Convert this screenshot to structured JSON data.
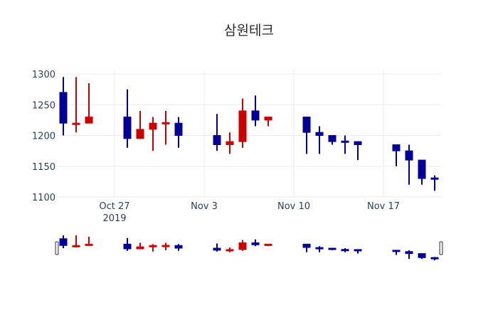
{
  "chart_data": {
    "type": "candlestick",
    "title": "삼원테크",
    "xlabel": "",
    "ylabel": "",
    "ylim": [
      1100,
      1300
    ],
    "y_ticks": [
      1100,
      1150,
      1200,
      1250,
      1300
    ],
    "x_ticks": [
      {
        "date": "2019-10-27",
        "label": "Oct 27",
        "sublabel": "2019"
      },
      {
        "date": "2019-11-03",
        "label": "Nov 3"
      },
      {
        "date": "2019-11-10",
        "label": "Nov 10"
      },
      {
        "date": "2019-11-17",
        "label": "Nov 17"
      }
    ],
    "grid": true,
    "rangeslider": true,
    "increasing_color": "#cc0000",
    "decreasing_color": "#000099",
    "candles": [
      {
        "date": "2019-10-23",
        "open": 1270,
        "high": 1295,
        "low": 1200,
        "close": 1220
      },
      {
        "date": "2019-10-24",
        "open": 1220,
        "high": 1295,
        "low": 1205,
        "close": 1220
      },
      {
        "date": "2019-10-25",
        "open": 1220,
        "high": 1285,
        "low": 1220,
        "close": 1230
      },
      {
        "date": "2019-10-28",
        "open": 1230,
        "high": 1275,
        "low": 1180,
        "close": 1195
      },
      {
        "date": "2019-10-29",
        "open": 1195,
        "high": 1240,
        "low": 1195,
        "close": 1210
      },
      {
        "date": "2019-10-30",
        "open": 1210,
        "high": 1230,
        "low": 1175,
        "close": 1220
      },
      {
        "date": "2019-10-31",
        "open": 1219,
        "high": 1240,
        "low": 1185,
        "close": 1221
      },
      {
        "date": "2019-11-01",
        "open": 1220,
        "high": 1230,
        "low": 1180,
        "close": 1200
      },
      {
        "date": "2019-11-04",
        "open": 1200,
        "high": 1235,
        "low": 1175,
        "close": 1185
      },
      {
        "date": "2019-11-05",
        "open": 1185,
        "high": 1205,
        "low": 1170,
        "close": 1190
      },
      {
        "date": "2019-11-06",
        "open": 1190,
        "high": 1260,
        "low": 1180,
        "close": 1240
      },
      {
        "date": "2019-11-07",
        "open": 1240,
        "high": 1265,
        "low": 1215,
        "close": 1225
      },
      {
        "date": "2019-11-08",
        "open": 1225,
        "high": 1230,
        "low": 1215,
        "close": 1230
      },
      {
        "date": "2019-11-11",
        "open": 1230,
        "high": 1230,
        "low": 1170,
        "close": 1205
      },
      {
        "date": "2019-11-12",
        "open": 1205,
        "high": 1215,
        "low": 1170,
        "close": 1200
      },
      {
        "date": "2019-11-13",
        "open": 1200,
        "high": 1200,
        "low": 1185,
        "close": 1190
      },
      {
        "date": "2019-11-14",
        "open": 1191,
        "high": 1200,
        "low": 1170,
        "close": 1189
      },
      {
        "date": "2019-11-15",
        "open": 1190,
        "high": 1190,
        "low": 1160,
        "close": 1185
      },
      {
        "date": "2019-11-18",
        "open": 1185,
        "high": 1185,
        "low": 1150,
        "close": 1175
      },
      {
        "date": "2019-11-19",
        "open": 1175,
        "high": 1185,
        "low": 1120,
        "close": 1160
      },
      {
        "date": "2019-11-20",
        "open": 1160,
        "high": 1160,
        "low": 1120,
        "close": 1130
      },
      {
        "date": "2019-11-21",
        "open": 1131,
        "high": 1135,
        "low": 1110,
        "close": 1129
      }
    ]
  }
}
